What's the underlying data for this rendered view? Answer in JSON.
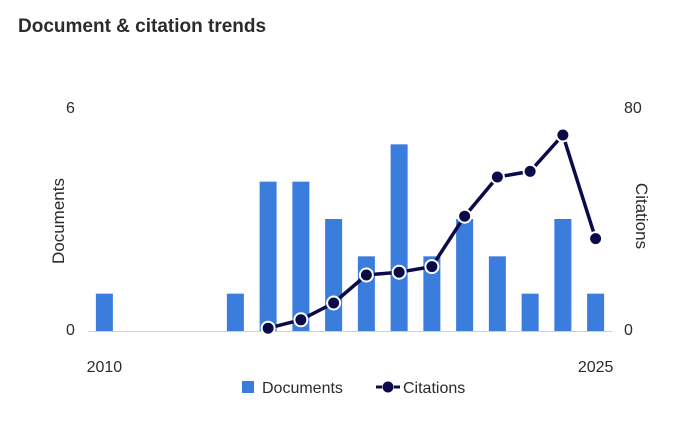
{
  "header": {
    "title": "Document & citation trends"
  },
  "colors": {
    "documents": "#3b7ddd",
    "citations": "#0b0b4a",
    "baseline": "#cfcfcf",
    "text": "#2b2b2b"
  },
  "chart_data": {
    "type": "bar",
    "title": "Document & citation trends",
    "x": [
      2010,
      2011,
      2012,
      2013,
      2014,
      2015,
      2016,
      2017,
      2018,
      2019,
      2020,
      2021,
      2022,
      2023,
      2024,
      2025
    ],
    "x_tick_labels": [
      "2010",
      "2025"
    ],
    "series": [
      {
        "name": "Documents",
        "type": "bar",
        "axis": "left",
        "values": [
          1,
          0,
          0,
          0,
          1,
          4,
          4,
          3,
          2,
          5,
          2,
          3,
          2,
          1,
          3,
          1
        ]
      },
      {
        "name": "Citations",
        "type": "line",
        "axis": "right",
        "values": [
          null,
          null,
          null,
          null,
          null,
          1,
          4,
          10,
          20,
          21,
          23,
          41,
          55,
          57,
          70,
          33
        ]
      }
    ],
    "ylabel_left": "Documents",
    "ylabel_right": "Citations",
    "ylim_left": [
      0,
      6
    ],
    "ylim_right": [
      0,
      80
    ],
    "y_left_tick_labels": [
      "0",
      "6"
    ],
    "y_right_tick_labels": [
      "0",
      "80"
    ],
    "grid": false,
    "legend_position": "bottom"
  }
}
